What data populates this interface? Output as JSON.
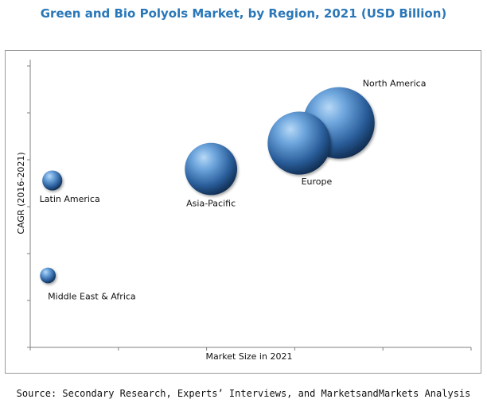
{
  "chart_data": {
    "type": "bubble",
    "title": "Green and Bio Polyols Market, by Region, 2021 (USD Billion)",
    "xlabel": "Market Size in 2021",
    "ylabel": "CAGR (2016-2021)",
    "grid": false,
    "axis_ticks_labeled": false,
    "points": [
      {
        "label": "North America",
        "x": 0.7,
        "y": 0.78,
        "size": 1.0
      },
      {
        "label": "Europe",
        "x": 0.61,
        "y": 0.71,
        "size": 0.88
      },
      {
        "label": "Asia-Pacific",
        "x": 0.41,
        "y": 0.62,
        "size": 0.73
      },
      {
        "label": "Latin America",
        "x": 0.05,
        "y": 0.58,
        "size": 0.28
      },
      {
        "label": "Middle East & Africa",
        "x": 0.04,
        "y": 0.25,
        "size": 0.22
      }
    ],
    "source": "Source: Secondary Research, Experts’ Interviews, and MarketsandMarkets Analysis"
  },
  "colors": {
    "title": "#2a77b8",
    "bubble_light": "#9ec8ef",
    "bubble_mid": "#3a76b7",
    "bubble_dark": "#102f57",
    "axis": "#808080",
    "frame": "#9a9a9a"
  }
}
